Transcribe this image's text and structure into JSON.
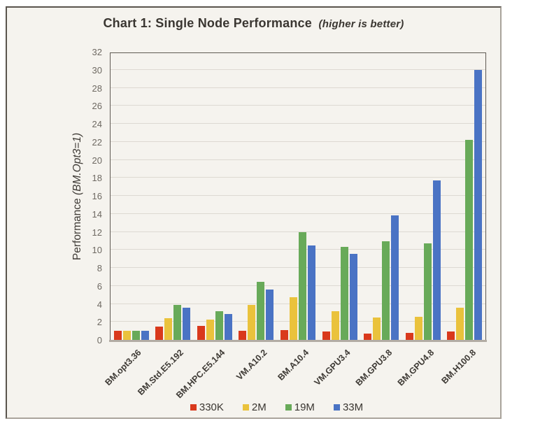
{
  "title": {
    "main": "Chart 1: Single Node Performance",
    "note": "(higher is better)"
  },
  "chart_data": {
    "type": "bar",
    "title": "Chart 1: Single Node Performance (higher is better)",
    "categories": [
      "BM.opt3.36",
      "BM.Std.E5.192",
      "BM.HPC.E5.144",
      "VM.A10.2",
      "BM.A10.4",
      "VM.GPU3.4",
      "BM.GPU3.8",
      "BM.GPU4.8",
      "BM.H100.8"
    ],
    "series": [
      {
        "name": "330K",
        "color": "#d9391c",
        "values": [
          1.0,
          1.5,
          1.6,
          1.0,
          1.1,
          0.9,
          0.7,
          0.75,
          0.9
        ]
      },
      {
        "name": "2M",
        "color": "#eac23c",
        "values": [
          1.0,
          2.4,
          2.3,
          3.9,
          4.8,
          3.2,
          2.5,
          2.6,
          3.6
        ]
      },
      {
        "name": "19M",
        "color": "#68aa59",
        "values": [
          1.0,
          3.9,
          3.2,
          6.5,
          12.0,
          10.4,
          11.0,
          10.8,
          22.3
        ]
      },
      {
        "name": "33M",
        "color": "#4a73c4",
        "values": [
          1.0,
          3.6,
          2.9,
          5.6,
          10.5,
          9.6,
          13.9,
          17.8,
          30.1
        ]
      }
    ],
    "xlabel": "",
    "ylabel": "Performance (BM.Opt3=1)",
    "ylabel_plain": "Performance ",
    "ylabel_italic": "(BM.Opt3=1)",
    "ylim": [
      0,
      32
    ],
    "ytick_step": 2,
    "yticks": [
      0,
      2,
      4,
      6,
      8,
      10,
      12,
      14,
      16,
      18,
      20,
      22,
      24,
      26,
      28,
      30,
      32
    ],
    "grid": true,
    "legend_position": "bottom",
    "background_color": "#f5f3ee"
  }
}
